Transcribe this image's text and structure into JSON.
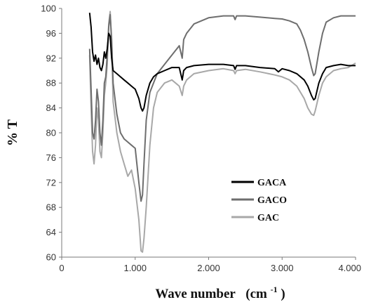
{
  "chart_data": {
    "type": "line",
    "title": "",
    "xlabel": "Wave number",
    "xlabel_unit_base": "(cm",
    "xlabel_unit_sup": "-1",
    "xlabel_unit_close": ")",
    "ylabel": "% T",
    "xlim": [
      0,
      4000
    ],
    "ylim": [
      60,
      100
    ],
    "x_ticks": [
      0,
      1000,
      2000,
      3000,
      4000
    ],
    "x_tick_labels": [
      "0",
      "1.000",
      "2.000",
      "3.000",
      "4.000"
    ],
    "y_ticks": [
      60,
      64,
      68,
      72,
      76,
      80,
      84,
      88,
      92,
      96,
      100
    ],
    "y_tick_labels": [
      "60",
      "64",
      "68",
      "72",
      "76",
      "80",
      "84",
      "88",
      "92",
      "96",
      "100"
    ],
    "grid": false,
    "legend_position": "center-right",
    "series": [
      {
        "name": "GACA",
        "color": "#000000",
        "x": [
          380,
          400,
          420,
          440,
          460,
          480,
          500,
          520,
          540,
          560,
          580,
          600,
          620,
          640,
          660,
          680,
          700,
          750,
          800,
          850,
          900,
          950,
          1000,
          1050,
          1080,
          1100,
          1120,
          1150,
          1200,
          1250,
          1300,
          1400,
          1500,
          1600,
          1640,
          1660,
          1700,
          1800,
          2000,
          2200,
          2340,
          2360,
          2380,
          2500,
          2700,
          2900,
          2950,
          3000,
          3100,
          3200,
          3300,
          3350,
          3400,
          3430,
          3450,
          3500,
          3550,
          3600,
          3700,
          3800,
          3900,
          4000
        ],
        "y": [
          99.3,
          97.0,
          93.0,
          91.5,
          92.5,
          91.0,
          92.0,
          90.5,
          90.0,
          91.0,
          93.0,
          92.0,
          93.5,
          96.0,
          95.5,
          92.0,
          90.0,
          89.5,
          89.0,
          88.5,
          88.0,
          87.5,
          87.0,
          85.5,
          84.0,
          83.5,
          84.0,
          86.0,
          88.0,
          89.0,
          89.5,
          90.0,
          90.5,
          90.5,
          88.5,
          90.0,
          90.5,
          90.8,
          91.0,
          91.0,
          90.8,
          90.2,
          90.8,
          90.8,
          90.5,
          90.3,
          89.8,
          90.3,
          90.0,
          89.5,
          88.5,
          87.5,
          86.0,
          85.3,
          85.5,
          88.0,
          89.5,
          90.5,
          90.8,
          91.0,
          90.8,
          90.8
        ]
      },
      {
        "name": "GACO",
        "color": "#6e6e6e",
        "x": [
          380,
          400,
          420,
          440,
          460,
          480,
          500,
          520,
          540,
          560,
          580,
          600,
          620,
          640,
          660,
          680,
          700,
          750,
          800,
          850,
          900,
          950,
          1000,
          1050,
          1080,
          1100,
          1120,
          1150,
          1200,
          1250,
          1300,
          1400,
          1500,
          1600,
          1640,
          1660,
          1700,
          1800,
          2000,
          2200,
          2340,
          2360,
          2380,
          2500,
          2700,
          2900,
          3000,
          3100,
          3200,
          3250,
          3300,
          3350,
          3400,
          3430,
          3450,
          3500,
          3550,
          3600,
          3700,
          3800,
          3900,
          4000
        ],
        "y": [
          93.5,
          87.0,
          80.0,
          79.0,
          82.0,
          87.0,
          85.0,
          80.0,
          78.0,
          82.0,
          88.0,
          89.0,
          92.5,
          97.0,
          99.0,
          95.0,
          88.0,
          83.0,
          80.0,
          79.0,
          78.5,
          78.0,
          77.5,
          72.0,
          69.0,
          70.0,
          75.0,
          82.0,
          86.5,
          88.0,
          89.5,
          91.0,
          92.5,
          94.0,
          92.0,
          95.0,
          96.0,
          97.5,
          98.5,
          98.8,
          98.8,
          98.2,
          98.8,
          98.8,
          98.6,
          98.4,
          98.3,
          98.0,
          97.5,
          96.5,
          95.0,
          93.0,
          90.5,
          89.2,
          89.5,
          93.0,
          96.0,
          97.8,
          98.5,
          98.8,
          98.8,
          98.8
        ]
      },
      {
        "name": "GAC",
        "color": "#a8a8a8",
        "x": [
          380,
          400,
          420,
          440,
          460,
          480,
          500,
          520,
          540,
          560,
          580,
          600,
          620,
          640,
          660,
          680,
          700,
          750,
          800,
          850,
          900,
          950,
          1000,
          1050,
          1080,
          1100,
          1120,
          1150,
          1200,
          1250,
          1300,
          1400,
          1500,
          1600,
          1640,
          1660,
          1700,
          1800,
          2000,
          2200,
          2340,
          2360,
          2380,
          2500,
          2700,
          2900,
          3000,
          3100,
          3200,
          3300,
          3350,
          3400,
          3430,
          3450,
          3500,
          3550,
          3600,
          3700,
          3800,
          3900,
          4000
        ],
        "y": [
          92.5,
          84.0,
          77.0,
          75.0,
          78.0,
          84.0,
          82.0,
          77.0,
          76.0,
          80.0,
          86.0,
          88.0,
          91.0,
          97.5,
          99.5,
          94.0,
          85.0,
          80.0,
          77.0,
          75.0,
          73.0,
          74.0,
          71.0,
          66.0,
          61.0,
          60.8,
          63.0,
          68.0,
          78.0,
          84.0,
          86.5,
          88.0,
          88.5,
          87.5,
          86.0,
          87.5,
          88.5,
          89.5,
          90.0,
          90.3,
          90.0,
          89.5,
          90.0,
          90.2,
          89.8,
          89.3,
          89.0,
          88.5,
          87.5,
          85.5,
          84.0,
          83.0,
          82.8,
          83.5,
          86.0,
          88.0,
          89.0,
          90.0,
          90.3,
          90.5,
          91.2
        ]
      }
    ]
  }
}
